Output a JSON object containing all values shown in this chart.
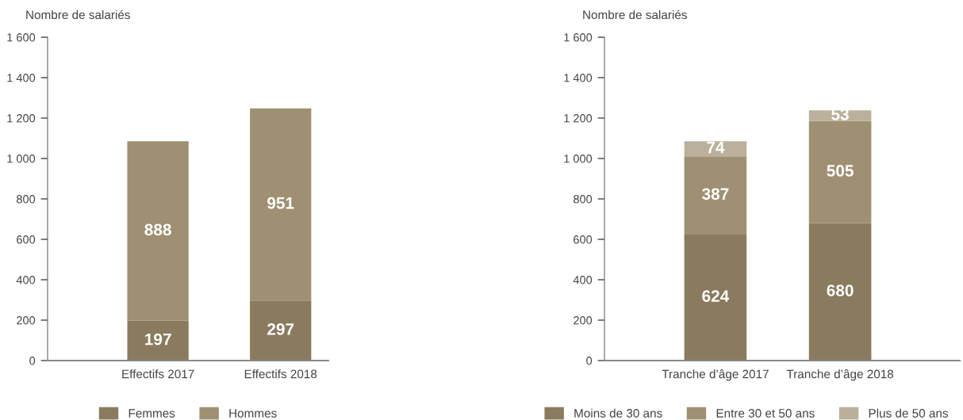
{
  "chart_data": [
    {
      "type": "bar",
      "ylabel": "Nombre de salariés",
      "categories": [
        "Effectifs 2017",
        "Effectifs 2018"
      ],
      "stacked": true,
      "data_labels": true,
      "legend": "bottom",
      "ylim": [
        0,
        1600
      ],
      "yticks": [
        0,
        {
          "value": 200,
          "label": "200"
        },
        {
          "value": 400,
          "label": "400"
        },
        {
          "value": 600,
          "label": "600"
        },
        {
          "value": 800,
          "label": "800"
        },
        {
          "value": 1000,
          "label": "1 000"
        },
        {
          "value": 1200,
          "label": "1 200"
        },
        {
          "value": 1400,
          "label": "1 400"
        },
        {
          "value": 1600,
          "label": "1 600"
        }
      ],
      "series": [
        {
          "name": "Femmes",
          "color": "#8a7b5e",
          "values": [
            197,
            297
          ]
        },
        {
          "name": "Hommes",
          "color": "#9f9073",
          "values": [
            888,
            951
          ]
        }
      ]
    },
    {
      "type": "bar",
      "ylabel": "Nombre de salariés",
      "categories": [
        "Tranche d’âge 2017",
        "Tranche d’âge 2018"
      ],
      "stacked": true,
      "data_labels": true,
      "legend": "bottom",
      "ylim": [
        0,
        1600
      ],
      "yticks": [
        0,
        {
          "value": 200,
          "label": "200"
        },
        {
          "value": 400,
          "label": "400"
        },
        {
          "value": 600,
          "label": "600"
        },
        {
          "value": 800,
          "label": "800"
        },
        {
          "value": 1000,
          "label": "1 000"
        },
        {
          "value": 1200,
          "label": "1 200"
        },
        {
          "value": 1400,
          "label": "1 400"
        },
        {
          "value": 1600,
          "label": "1 600"
        }
      ],
      "series": [
        {
          "name": "Moins de 30 ans",
          "color": "#8a7b5e",
          "values": [
            624,
            680
          ]
        },
        {
          "name": "Entre 30 et 50 ans",
          "color": "#9f9073",
          "values": [
            387,
            505
          ]
        },
        {
          "name": "Plus de 50 ans",
          "color": "#bbb09c",
          "values": [
            74,
            53
          ]
        }
      ]
    }
  ]
}
